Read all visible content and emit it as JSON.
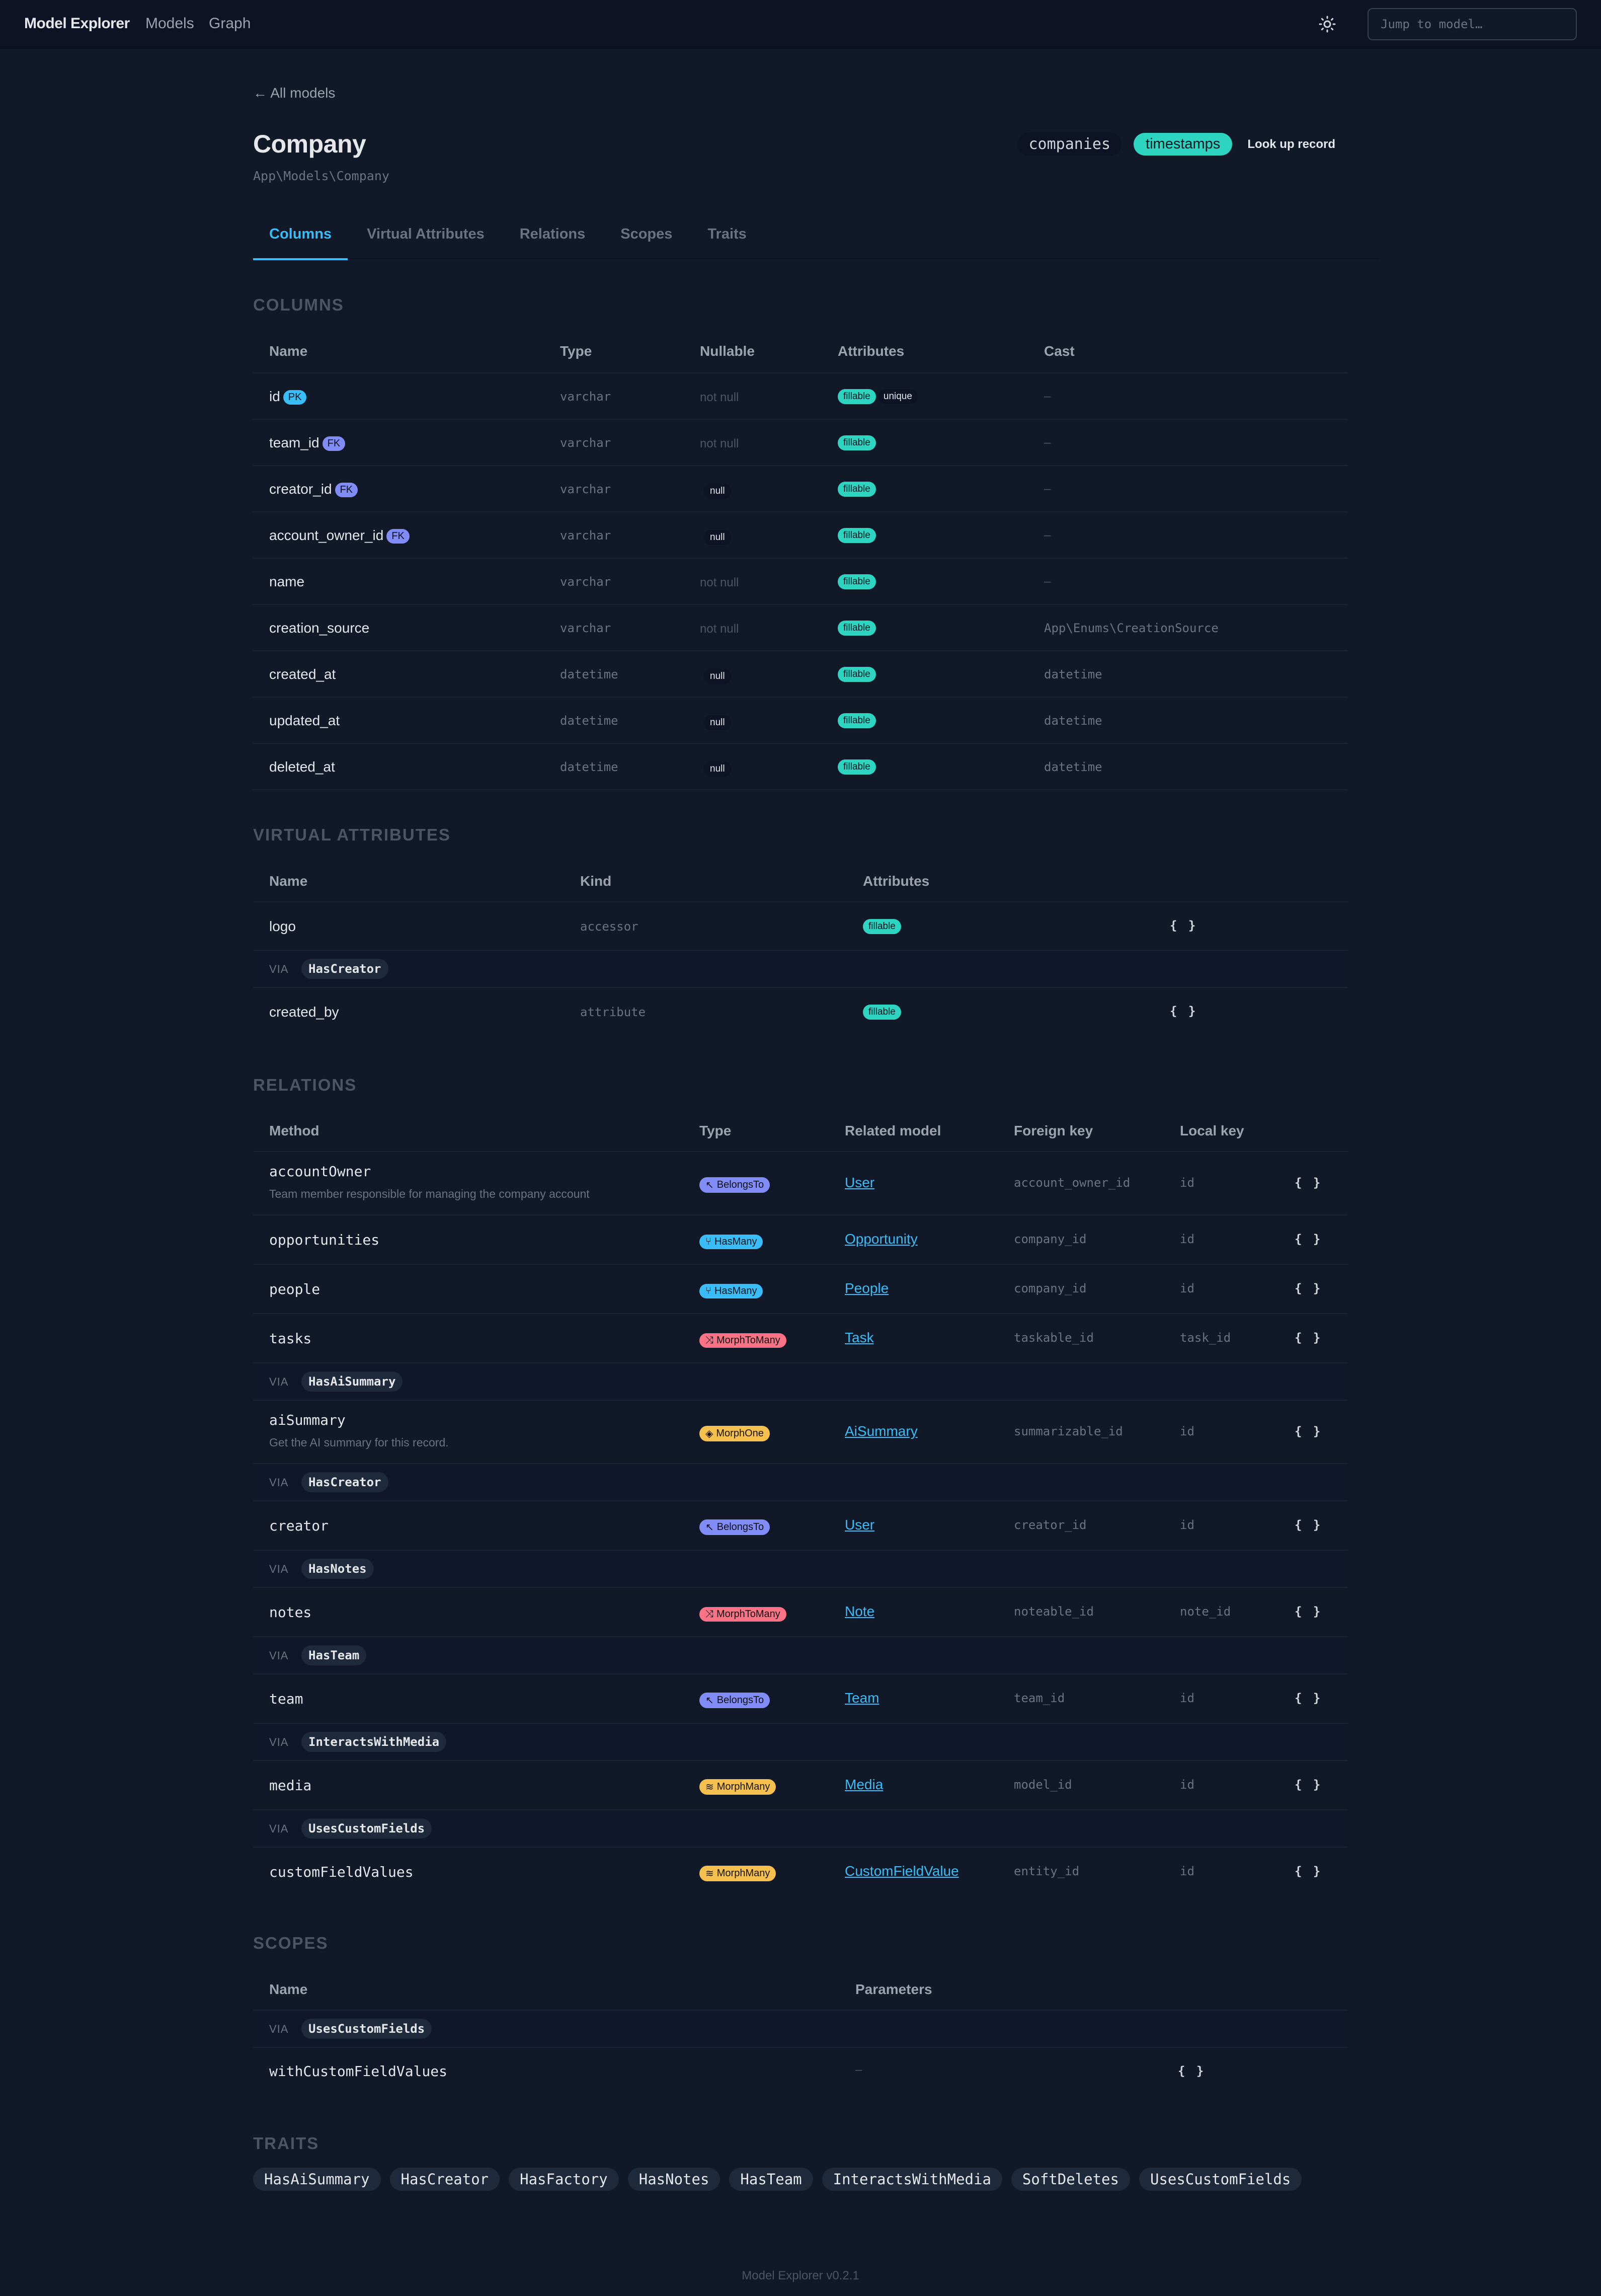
{
  "topbar": {
    "brand": "Model Explorer",
    "nav": [
      "Models",
      "Graph"
    ],
    "theme_icon": "sun-icon",
    "search_placeholder": "Jump to model…"
  },
  "header": {
    "back_label": "← All models",
    "title": "Company",
    "namespace": "App\\Models\\Company",
    "table_pill": "companies",
    "timestamps_pill": "timestamps",
    "lookup_label": "Look up record"
  },
  "tabs": [
    {
      "label": "Columns",
      "active": true
    },
    {
      "label": "Virtual Attributes",
      "active": false
    },
    {
      "label": "Relations",
      "active": false
    },
    {
      "label": "Scopes",
      "active": false
    },
    {
      "label": "Traits",
      "active": false
    }
  ],
  "columns": {
    "label": "COLUMNS",
    "headers": [
      "Name",
      "Type",
      "Nullable",
      "Attributes",
      "Cast"
    ],
    "rows": [
      {
        "name": "id",
        "key": "PK",
        "type": "varchar",
        "nullable": "not null",
        "attributes": [
          "fillable",
          "unique"
        ],
        "cast": "–"
      },
      {
        "name": "team_id",
        "key": "FK",
        "type": "varchar",
        "nullable": "not null",
        "attributes": [
          "fillable"
        ],
        "cast": "–"
      },
      {
        "name": "creator_id",
        "key": "FK",
        "type": "varchar",
        "nullable": "null",
        "attributes": [
          "fillable"
        ],
        "cast": "–"
      },
      {
        "name": "account_owner_id",
        "key": "FK",
        "type": "varchar",
        "nullable": "null",
        "attributes": [
          "fillable"
        ],
        "cast": "–"
      },
      {
        "name": "name",
        "key": "",
        "type": "varchar",
        "nullable": "not null",
        "attributes": [
          "fillable"
        ],
        "cast": "–"
      },
      {
        "name": "creation_source",
        "key": "",
        "type": "varchar",
        "nullable": "not null",
        "attributes": [
          "fillable"
        ],
        "cast": "App\\Enums\\CreationSource"
      },
      {
        "name": "created_at",
        "key": "",
        "type": "datetime",
        "nullable": "null",
        "attributes": [
          "fillable"
        ],
        "cast": "datetime"
      },
      {
        "name": "updated_at",
        "key": "",
        "type": "datetime",
        "nullable": "null",
        "attributes": [
          "fillable"
        ],
        "cast": "datetime"
      },
      {
        "name": "deleted_at",
        "key": "",
        "type": "datetime",
        "nullable": "null",
        "attributes": [
          "fillable"
        ],
        "cast": "datetime"
      }
    ]
  },
  "virtual_attributes": {
    "label": "VIRTUAL ATTRIBUTES",
    "headers": [
      "Name",
      "Kind",
      "Attributes"
    ],
    "via_label": "VIA",
    "rows": [
      {
        "name": "logo",
        "kind": "accessor",
        "attribute": "fillable",
        "code": "{ }"
      },
      {
        "via": "HasCreator"
      },
      {
        "name": "created_by",
        "kind": "attribute",
        "attribute": "fillable",
        "code": "{ }"
      }
    ]
  },
  "relations": {
    "label": "RELATIONS",
    "headers": [
      "Method",
      "Type",
      "Related model",
      "Foreign key",
      "Local key"
    ],
    "via_label": "VIA",
    "rows": [
      {
        "method": "accountOwner",
        "description": "Team member responsible for managing the company account",
        "type": "BelongsTo",
        "kind": "belongs",
        "icon": "↖",
        "related": "User",
        "foreign_key": "account_owner_id",
        "local_key": "id",
        "code": "{ }"
      },
      {
        "method": "opportunities",
        "type": "HasMany",
        "kind": "hasmany",
        "icon": "⑂",
        "related": "Opportunity",
        "foreign_key": "company_id",
        "local_key": "id",
        "code": "{ }"
      },
      {
        "method": "people",
        "type": "HasMany",
        "kind": "hasmany",
        "icon": "⑂",
        "related": "People",
        "foreign_key": "company_id",
        "local_key": "id",
        "code": "{ }"
      },
      {
        "method": "tasks",
        "type": "MorphToMany",
        "kind": "morphtomany",
        "icon": "⤨",
        "related": "Task",
        "foreign_key": "taskable_id",
        "local_key": "task_id",
        "code": "{ }"
      },
      {
        "via": "HasAiSummary"
      },
      {
        "method": "aiSummary",
        "description": "Get the AI summary for this record.",
        "type": "MorphOne",
        "kind": "morph",
        "icon": "◈",
        "related": "AiSummary",
        "foreign_key": "summarizable_id",
        "local_key": "id",
        "code": "{ }"
      },
      {
        "via": "HasCreator"
      },
      {
        "method": "creator",
        "type": "BelongsTo",
        "kind": "belongs",
        "icon": "↖",
        "related": "User",
        "foreign_key": "creator_id",
        "local_key": "id",
        "code": "{ }"
      },
      {
        "via": "HasNotes"
      },
      {
        "method": "notes",
        "type": "MorphToMany",
        "kind": "morphtomany",
        "icon": "⤨",
        "related": "Note",
        "foreign_key": "noteable_id",
        "local_key": "note_id",
        "code": "{ }"
      },
      {
        "via": "HasTeam"
      },
      {
        "method": "team",
        "type": "BelongsTo",
        "kind": "belongs",
        "icon": "↖",
        "related": "Team",
        "foreign_key": "team_id",
        "local_key": "id",
        "code": "{ }"
      },
      {
        "via": "InteractsWithMedia"
      },
      {
        "method": "media",
        "type": "MorphMany",
        "kind": "morph",
        "icon": "≋",
        "related": "Media",
        "foreign_key": "model_id",
        "local_key": "id",
        "code": "{ }"
      },
      {
        "via": "UsesCustomFields"
      },
      {
        "method": "customFieldValues",
        "type": "MorphMany",
        "kind": "morph",
        "icon": "≋",
        "related": "CustomFieldValue",
        "foreign_key": "entity_id",
        "local_key": "id",
        "code": "{ }"
      }
    ]
  },
  "scopes": {
    "label": "SCOPES",
    "headers": [
      "Name",
      "Parameters"
    ],
    "via_label": "VIA",
    "via": "UsesCustomFields",
    "rows": [
      {
        "name": "withCustomFieldValues",
        "parameters": "–",
        "code": "{ }"
      }
    ]
  },
  "traits": {
    "label": "TRAITS",
    "items": [
      "HasAiSummary",
      "HasCreator",
      "HasFactory",
      "HasNotes",
      "HasTeam",
      "InteractsWithMedia",
      "SoftDeletes",
      "UsesCustomFields"
    ]
  },
  "footer": "Model Explorer v0.2.1",
  "colors": {
    "accent": "#38bdf8",
    "fillable": "#2dd4bf",
    "belongs_to": "#818cf8",
    "has_many": "#38bdf8",
    "morph_to_many": "#fb7185",
    "morph": "#f5c04d",
    "background": "#111827"
  }
}
